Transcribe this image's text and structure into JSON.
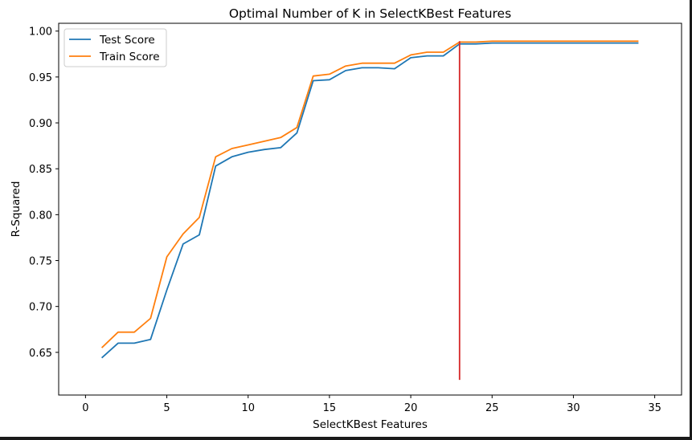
{
  "chart_data": {
    "type": "line",
    "title": "Optimal Number of K in SelectKBest Features",
    "xlabel": "SelectKBest Features",
    "ylabel": "R-Squared",
    "xlim": [
      -1.65,
      36.65
    ],
    "ylim": [
      0.6035,
      1.0085
    ],
    "xticks": [
      0,
      5,
      10,
      15,
      20,
      25,
      30,
      35
    ],
    "yticks": [
      0.65,
      0.7,
      0.75,
      0.8,
      0.85,
      0.9,
      0.95,
      1.0
    ],
    "xtick_labels": [
      "0",
      "5",
      "10",
      "15",
      "20",
      "25",
      "30",
      "35"
    ],
    "ytick_labels": [
      "0.65",
      "0.70",
      "0.75",
      "0.80",
      "0.85",
      "0.90",
      "0.95",
      "1.00"
    ],
    "x": [
      1,
      2,
      3,
      4,
      5,
      6,
      7,
      8,
      9,
      10,
      11,
      12,
      13,
      14,
      15,
      16,
      17,
      18,
      19,
      20,
      21,
      22,
      23,
      24,
      25,
      26,
      27,
      28,
      29,
      30,
      31,
      32,
      33,
      34
    ],
    "series": [
      {
        "name": "Test Score",
        "color": "#1f77b4",
        "values": [
          0.644,
          0.66,
          0.66,
          0.664,
          0.718,
          0.768,
          0.778,
          0.853,
          0.863,
          0.868,
          0.871,
          0.873,
          0.889,
          0.946,
          0.947,
          0.957,
          0.96,
          0.96,
          0.959,
          0.971,
          0.973,
          0.973,
          0.986,
          0.986,
          0.987,
          0.987,
          0.987,
          0.987,
          0.987,
          0.987,
          0.987,
          0.987,
          0.987,
          0.987
        ]
      },
      {
        "name": "Train Score",
        "color": "#ff7f0e",
        "values": [
          0.655,
          0.672,
          0.672,
          0.687,
          0.754,
          0.779,
          0.797,
          0.863,
          0.872,
          0.876,
          0.88,
          0.884,
          0.895,
          0.951,
          0.953,
          0.962,
          0.965,
          0.965,
          0.965,
          0.974,
          0.977,
          0.977,
          0.988,
          0.988,
          0.989,
          0.989,
          0.989,
          0.989,
          0.989,
          0.989,
          0.989,
          0.989,
          0.989,
          0.989
        ]
      }
    ],
    "vline": {
      "x": 23,
      "ymin": 0.62,
      "ymax": 0.989,
      "color": "#d62728"
    },
    "grid": false,
    "legend": "top-left"
  }
}
